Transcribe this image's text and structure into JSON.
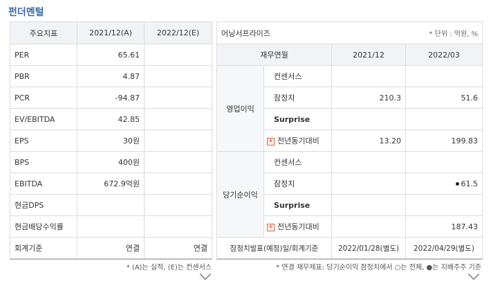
{
  "title": "펀더멘털",
  "left_table": {
    "headers": [
      "주요지표",
      "2021/12(A)",
      "2022/12(E)"
    ],
    "rows": [
      {
        "label": "PER",
        "a": "65.61",
        "e": ""
      },
      {
        "label": "PBR",
        "a": "4.87",
        "e": ""
      },
      {
        "label": "PCR",
        "a": "-94.87",
        "e": ""
      },
      {
        "label": "EV/EBITDA",
        "a": "42.85",
        "e": ""
      },
      {
        "label": "EPS",
        "a": "30원",
        "e": ""
      },
      {
        "label": "BPS",
        "a": "400원",
        "e": ""
      },
      {
        "label": "EBITDA",
        "a": "672.9억원",
        "e": ""
      },
      {
        "label": "현금DPS",
        "a": "",
        "e": ""
      },
      {
        "label": "현금배당수익률",
        "a": "",
        "e": ""
      },
      {
        "label": "회계기준",
        "a": "연결",
        "e": "연결"
      }
    ],
    "footnote": "* (A)는 실적, (E)는 컨센서스"
  },
  "right_table": {
    "title": "어닝서프라이즈",
    "unit": "* 단위 : 억원, %",
    "headers": [
      "재무연월",
      "2021/12",
      "2022/03"
    ],
    "groups": [
      {
        "label": "영업이익",
        "rows": [
          {
            "label": "컨센서스",
            "v1": "",
            "v2": ""
          },
          {
            "label": "잠정치",
            "v1": "210.3",
            "v2": "51.6"
          },
          {
            "label": "Surprise",
            "v1": "",
            "v2": ""
          },
          {
            "label": "전년동기대비",
            "v1": "13.20",
            "v2": "199.83"
          }
        ]
      },
      {
        "label": "당기순이익",
        "rows": [
          {
            "label": "컨센서스",
            "v1": "",
            "v2": ""
          },
          {
            "label": "잠정치",
            "v1": "",
            "v2": "61.5"
          },
          {
            "label": "Surprise",
            "v1": "",
            "v2": ""
          },
          {
            "label": "전년동기대비",
            "v1": "",
            "v2": "187.43"
          }
        ]
      }
    ],
    "announce": {
      "label": "잠정치발표(예정)일/회계기준",
      "v1": "2022/01/28(별도)",
      "v2": "2022/04/29(별도)"
    },
    "footnote": "* 연결 재무제표: 당기순이익 잠정치에서 ○는 전체, ●는 지배주주 기준"
  },
  "icons": {
    "plus": "plus-icon",
    "dot": "dot-icon",
    "chevron": "chevron-down-icon"
  },
  "colors": {
    "title": "#3a6aa8",
    "header_bg": "#f1f3f6",
    "plus": "#e05a3a"
  }
}
